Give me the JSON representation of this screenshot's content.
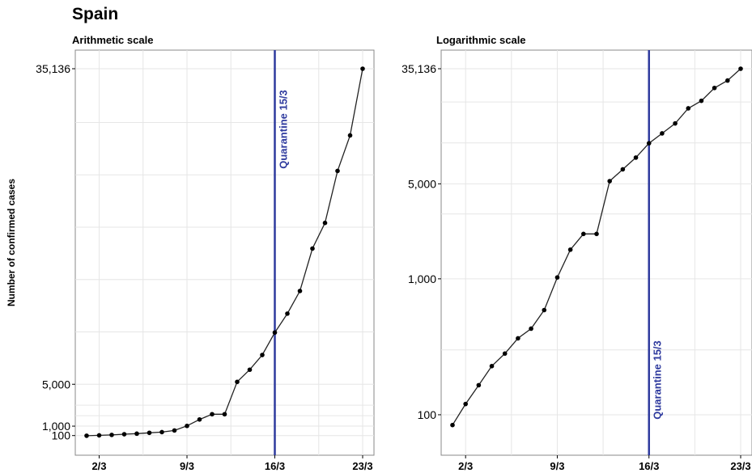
{
  "figure": {
    "title": "Spain",
    "ylabel": "Number of confirmed cases"
  },
  "chart_data": [
    {
      "type": "line",
      "title": "Arithmetic scale",
      "xlabel": "",
      "ylabel": "Number of confirmed cases",
      "scale": "linear",
      "ylim": [
        0,
        35136
      ],
      "xlim": [
        "1/3",
        "23/3"
      ],
      "y_ticks": [
        100,
        1000,
        5000,
        35136
      ],
      "y_tick_labels": [
        "100",
        "1,000",
        "5,000",
        "35,136"
      ],
      "x_ticks": [
        "2/3",
        "9/3",
        "16/3",
        "23/3"
      ],
      "grid": true,
      "annotation": {
        "label": "Quarantine 15/3",
        "x": "15/3"
      },
      "series": [
        {
          "x": [
            "1/3",
            "2/3",
            "3/3",
            "4/3",
            "5/3",
            "6/3",
            "7/3",
            "8/3",
            "9/3",
            "10/3",
            "11/3",
            "12/3",
            "13/3",
            "14/3",
            "15/3",
            "16/3",
            "17/3",
            "18/3",
            "19/3",
            "20/3",
            "21/3",
            "22/3",
            "23/3"
          ],
          "values": [
            84,
            120,
            165,
            228,
            282,
            365,
            430,
            589,
            1024,
            1639,
            2140,
            2140,
            5232,
            6391,
            7798,
            9942,
            11748,
            13910,
            17963,
            20410,
            25374,
            28768,
            35136
          ]
        }
      ]
    },
    {
      "type": "line",
      "title": "Logarithmic scale",
      "xlabel": "",
      "ylabel": "",
      "scale": "log",
      "ylim": [
        70,
        35136
      ],
      "xlim": [
        "1/3",
        "23/3"
      ],
      "y_ticks": [
        100,
        1000,
        5000,
        35136
      ],
      "y_tick_labels": [
        "100",
        "1,000",
        "5,000",
        "35,136"
      ],
      "x_ticks": [
        "2/3",
        "9/3",
        "16/3",
        "23/3"
      ],
      "grid": true,
      "annotation": {
        "label": "Quarantine 15/3",
        "x": "15/3"
      },
      "series": [
        {
          "x": [
            "1/3",
            "2/3",
            "3/3",
            "4/3",
            "5/3",
            "6/3",
            "7/3",
            "8/3",
            "9/3",
            "10/3",
            "11/3",
            "12/3",
            "13/3",
            "14/3",
            "15/3",
            "16/3",
            "17/3",
            "18/3",
            "19/3",
            "20/3",
            "21/3",
            "22/3",
            "23/3"
          ],
          "values": [
            84,
            120,
            165,
            228,
            282,
            365,
            430,
            589,
            1024,
            1639,
            2140,
            2140,
            5232,
            6391,
            7798,
            9942,
            11748,
            13910,
            17963,
            20410,
            25374,
            28768,
            35136
          ]
        }
      ]
    }
  ],
  "colors": {
    "line": "#222222",
    "marker": "#000000",
    "annotation": "#2e3a9e",
    "grid": "#e6e6e6",
    "frame": "#888888"
  }
}
